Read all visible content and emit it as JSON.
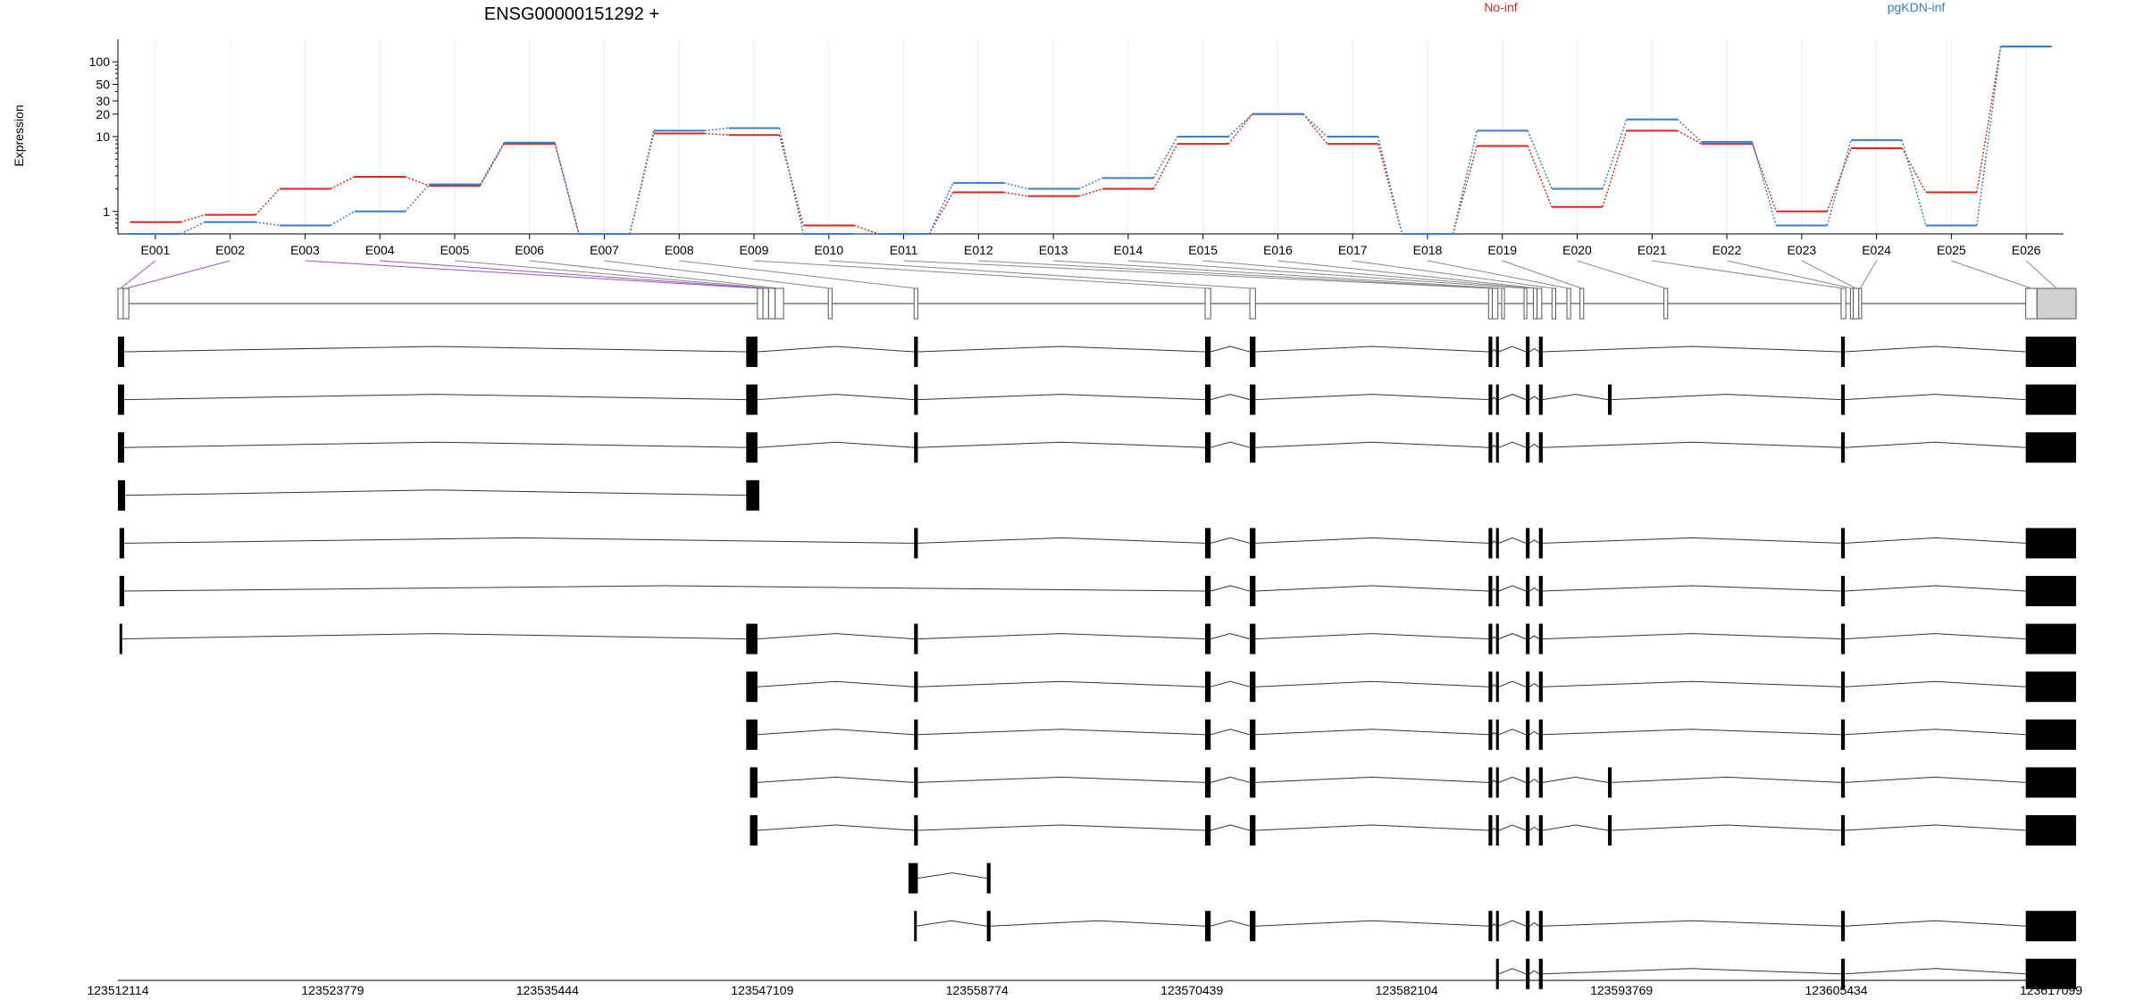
{
  "chart_data": {
    "type": "line",
    "title": "ENSG00000151292 +",
    "ylabel": "Expression",
    "xlabel": "",
    "y_scale": "log",
    "y_ticks": [
      1,
      10,
      20,
      30,
      50,
      100
    ],
    "ylim": [
      0.5,
      200
    ],
    "grid": "vertical",
    "legend_placement": "top",
    "categories": [
      "E001",
      "E002",
      "E003",
      "E004",
      "E005",
      "E006",
      "E007",
      "E008",
      "E009",
      "E010",
      "E011",
      "E012",
      "E013",
      "E014",
      "E015",
      "E016",
      "E017",
      "E018",
      "E019",
      "E020",
      "E021",
      "E022",
      "E023",
      "E024",
      "E025",
      "E026"
    ],
    "series": [
      {
        "name": "No-inf",
        "color": "#d62728",
        "values": [
          0.72,
          0.9,
          2.0,
          2.9,
          2.2,
          8.0,
          0.5,
          11.0,
          10.5,
          0.65,
          0.5,
          1.8,
          1.6,
          2.0,
          8.0,
          20.0,
          8.0,
          0.5,
          7.5,
          1.15,
          12.0,
          8.0,
          1.0,
          7.0,
          1.8,
          160.0
        ]
      },
      {
        "name": "pgKDN-inf",
        "color": "#3a7dc9",
        "values": [
          0.5,
          0.72,
          0.65,
          1.0,
          2.3,
          8.3,
          0.5,
          12.0,
          13.0,
          0.5,
          0.5,
          2.4,
          2.0,
          2.8,
          10.0,
          20.0,
          10.0,
          0.5,
          12.0,
          2.0,
          17.0,
          8.5,
          0.65,
          9.0,
          0.65,
          160.0
        ]
      }
    ],
    "genomic_axis": {
      "range": [
        123512114,
        123617099
      ],
      "ticks": [
        "123512114",
        "123523779",
        "123535444",
        "123547109",
        "123558774",
        "123570439",
        "123582104",
        "123593769",
        "123605434",
        "123617099"
      ]
    },
    "exon_bins": [
      [
        123512114,
        123512400
      ],
      [
        123512400,
        123512700
      ],
      [
        123546400,
        123546700
      ],
      [
        123546700,
        123547000
      ],
      [
        123547000,
        123547350
      ],
      [
        123547350,
        123547800
      ],
      [
        123550200,
        123550400
      ],
      [
        123554800,
        123555000
      ],
      [
        123570400,
        123570700
      ],
      [
        123572800,
        123573100
      ],
      [
        123585600,
        123585800
      ],
      [
        123585800,
        123586100
      ],
      [
        123586300,
        123586450
      ],
      [
        123587500,
        123587650
      ],
      [
        123588000,
        123588200
      ],
      [
        123588200,
        123588450
      ],
      [
        123589000,
        123589200
      ],
      [
        123589800,
        123590000
      ],
      [
        123590500,
        123590700
      ],
      [
        123595000,
        123595200
      ],
      [
        123604500,
        123604750
      ],
      [
        123605000,
        123605150
      ],
      [
        123605150,
        123605450
      ],
      [
        123605450,
        123605600
      ],
      [
        123614400,
        123615000
      ],
      [
        123615000,
        123617099
      ]
    ],
    "transcripts": [
      [
        [
          123512114,
          123512450
        ],
        [
          123545800,
          123546400
        ],
        [
          123554800,
          123555000
        ],
        [
          123570400,
          123570700
        ],
        [
          123572800,
          123573100
        ],
        [
          123585600,
          123585800
        ],
        [
          123586000,
          123586150
        ],
        [
          123587600,
          123587800
        ],
        [
          123588300,
          123588500
        ],
        [
          123604500,
          123604700
        ],
        [
          123614400,
          123617099
        ]
      ],
      [
        [
          123512114,
          123512450
        ],
        [
          123545800,
          123546400
        ],
        [
          123554800,
          123555000
        ],
        [
          123570400,
          123570700
        ],
        [
          123572800,
          123573100
        ],
        [
          123585600,
          123585800
        ],
        [
          123586000,
          123586150
        ],
        [
          123587600,
          123587800
        ],
        [
          123588300,
          123588500
        ],
        [
          123592000,
          123592200
        ],
        [
          123604500,
          123604700
        ],
        [
          123614400,
          123617099
        ]
      ],
      [
        [
          123512114,
          123512450
        ],
        [
          123545800,
          123546400
        ],
        [
          123554800,
          123555000
        ],
        [
          123570400,
          123570700
        ],
        [
          123572800,
          123573100
        ],
        [
          123585600,
          123585800
        ],
        [
          123586000,
          123586150
        ],
        [
          123587600,
          123587800
        ],
        [
          123588300,
          123588500
        ],
        [
          123604500,
          123604700
        ],
        [
          123614400,
          123617099
        ]
      ],
      [
        [
          123512114,
          123512500
        ],
        [
          123545800,
          123546500
        ]
      ],
      [
        [
          123512200,
          123512450
        ],
        [
          123554800,
          123555000
        ],
        [
          123570400,
          123570700
        ],
        [
          123572800,
          123573100
        ],
        [
          123585600,
          123585800
        ],
        [
          123586000,
          123586150
        ],
        [
          123587600,
          123587800
        ],
        [
          123588300,
          123588500
        ],
        [
          123604500,
          123604700
        ],
        [
          123614400,
          123617099
        ]
      ],
      [
        [
          123512200,
          123512450
        ],
        [
          123570400,
          123570700
        ],
        [
          123572800,
          123573100
        ],
        [
          123585600,
          123585800
        ],
        [
          123586000,
          123586150
        ],
        [
          123587600,
          123587800
        ],
        [
          123588300,
          123588500
        ],
        [
          123604500,
          123604700
        ],
        [
          123614400,
          123617099
        ]
      ],
      [
        [
          123512200,
          123512260
        ],
        [
          123545800,
          123546400
        ],
        [
          123554800,
          123555000
        ],
        [
          123570400,
          123570700
        ],
        [
          123572800,
          123573100
        ],
        [
          123585600,
          123585800
        ],
        [
          123586000,
          123586150
        ],
        [
          123587600,
          123587800
        ],
        [
          123588300,
          123588500
        ],
        [
          123604500,
          123604700
        ],
        [
          123614400,
          123617099
        ]
      ],
      [
        [
          123545800,
          123546400
        ],
        [
          123554800,
          123555000
        ],
        [
          123570400,
          123570700
        ],
        [
          123572800,
          123573100
        ],
        [
          123585600,
          123585800
        ],
        [
          123586000,
          123586150
        ],
        [
          123587600,
          123587800
        ],
        [
          123588300,
          123588500
        ],
        [
          123604500,
          123604700
        ],
        [
          123614400,
          123617099
        ]
      ],
      [
        [
          123545800,
          123546400
        ],
        [
          123554800,
          123555000
        ],
        [
          123570400,
          123570700
        ],
        [
          123572800,
          123573100
        ],
        [
          123585600,
          123585800
        ],
        [
          123586000,
          123586150
        ],
        [
          123587600,
          123587800
        ],
        [
          123588300,
          123588500
        ],
        [
          123604500,
          123604700
        ],
        [
          123614400,
          123617099
        ]
      ],
      [
        [
          123546000,
          123546400
        ],
        [
          123554800,
          123555000
        ],
        [
          123570400,
          123570700
        ],
        [
          123572800,
          123573100
        ],
        [
          123585600,
          123585800
        ],
        [
          123586000,
          123586150
        ],
        [
          123587600,
          123587800
        ],
        [
          123588300,
          123588500
        ],
        [
          123592000,
          123592200
        ],
        [
          123604500,
          123604700
        ],
        [
          123614400,
          123617099
        ]
      ],
      [
        [
          123546000,
          123546400
        ],
        [
          123554800,
          123555000
        ],
        [
          123570400,
          123570700
        ],
        [
          123572800,
          123573100
        ],
        [
          123585600,
          123585800
        ],
        [
          123586000,
          123586150
        ],
        [
          123587600,
          123587800
        ],
        [
          123588300,
          123588500
        ],
        [
          123592000,
          123592200
        ],
        [
          123604500,
          123604700
        ],
        [
          123614400,
          123617099
        ]
      ],
      [
        [
          123554500,
          123555000
        ],
        [
          123558700,
          123558900
        ]
      ],
      [
        [
          123554800,
          123554900
        ],
        [
          123558700,
          123558900
        ],
        [
          123570400,
          123570700
        ],
        [
          123572800,
          123573100
        ],
        [
          123585600,
          123585800
        ],
        [
          123586000,
          123586150
        ],
        [
          123587600,
          123587800
        ],
        [
          123588300,
          123588500
        ],
        [
          123604500,
          123604700
        ],
        [
          123614400,
          123617099
        ]
      ],
      [
        [
          123586000,
          123586150
        ],
        [
          123587600,
          123587800
        ],
        [
          123588300,
          123588500
        ],
        [
          123604500,
          123604700
        ],
        [
          123614400,
          123617099
        ]
      ]
    ]
  }
}
